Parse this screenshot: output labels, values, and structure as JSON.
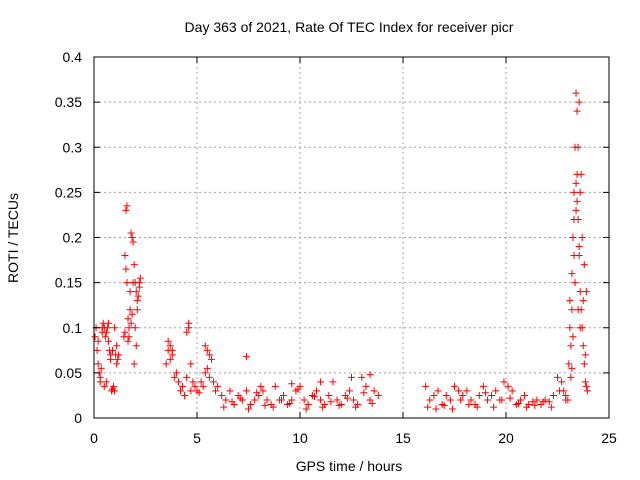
{
  "chart_data": {
    "type": "scatter",
    "title": "Day 363 of 2021, Rate Of TEC Index for receiver picr",
    "xlabel": "GPS time / hours",
    "ylabel": "ROTI / TECUs",
    "xlim": [
      0,
      25
    ],
    "ylim": [
      0,
      0.4
    ],
    "xticks": [
      0,
      5,
      10,
      15,
      20,
      25
    ],
    "xtick_labels": [
      "0",
      "5",
      "10",
      "15",
      "20",
      "25"
    ],
    "yticks": [
      0,
      0.05,
      0.1,
      0.15,
      0.2,
      0.25,
      0.3,
      0.35,
      0.4
    ],
    "ytick_labels": [
      "0",
      "0.05",
      "0.1",
      "0.15",
      "0.2",
      "0.25",
      "0.3",
      "0.35",
      "0.4"
    ],
    "grid": true,
    "marker": "+",
    "color": "#ff0000",
    "series": [
      {
        "name": "ROTI",
        "x": [
          0.05,
          0.1,
          0.15,
          0.2,
          0.25,
          0.3,
          0.35,
          0.4,
          0.45,
          0.5,
          0.55,
          0.6,
          0.65,
          0.7,
          0.75,
          0.8,
          0.85,
          0.9,
          0.95,
          1.0,
          1.05,
          1.1,
          1.15,
          1.2,
          0.2,
          0.3,
          0.4,
          0.5,
          0.6,
          0.7,
          0.8,
          0.9,
          1.0,
          1.1,
          1.45,
          1.5,
          1.55,
          1.6,
          1.65,
          1.7,
          1.75,
          1.8,
          1.85,
          1.9,
          1.95,
          2.0,
          2.05,
          2.1,
          2.15,
          2.2,
          2.25,
          1.5,
          1.6,
          1.7,
          1.8,
          1.9,
          2.0,
          2.1,
          2.2,
          1.55,
          1.65,
          1.75,
          1.85,
          1.95,
          2.05,
          3.5,
          3.6,
          3.7,
          3.8,
          3.9,
          4.0,
          4.1,
          4.2,
          4.3,
          4.4,
          4.5,
          4.6,
          4.7,
          4.8,
          4.9,
          5.0,
          5.1,
          5.2,
          5.3,
          5.4,
          5.5,
          5.6,
          5.7,
          5.8,
          5.9,
          6.0,
          4.5,
          4.6,
          4.7,
          5.4,
          5.5,
          5.6,
          3.6,
          3.7,
          3.8,
          6.2,
          6.4,
          6.6,
          6.8,
          7.0,
          7.2,
          7.4,
          7.6,
          7.8,
          8.0,
          8.2,
          8.4,
          8.6,
          8.8,
          9.0,
          9.2,
          9.4,
          9.6,
          9.8,
          10.0,
          10.2,
          10.4,
          10.6,
          10.8,
          11.0,
          11.2,
          11.4,
          11.6,
          11.8,
          12.0,
          12.2,
          12.4,
          12.6,
          12.8,
          13.0,
          13.2,
          13.4,
          13.6,
          13.8,
          6.3,
          6.7,
          7.1,
          7.5,
          7.9,
          8.3,
          8.7,
          9.1,
          9.5,
          9.9,
          10.3,
          10.7,
          11.1,
          11.5,
          11.9,
          12.3,
          12.7,
          13.1,
          13.5,
          7.4,
          8.1,
          9.6,
          11.0,
          12.5,
          13.4,
          16.1,
          16.3,
          16.5,
          16.7,
          16.9,
          17.1,
          17.3,
          17.5,
          17.7,
          17.9,
          18.1,
          18.3,
          18.5,
          18.7,
          18.9,
          19.1,
          19.3,
          19.5,
          19.7,
          19.9,
          20.1,
          20.3,
          20.5,
          20.7,
          20.9,
          21.1,
          21.3,
          21.5,
          21.7,
          21.9,
          22.1,
          22.3,
          22.5,
          22.7,
          22.9,
          16.2,
          16.6,
          17.0,
          17.4,
          17.8,
          18.2,
          18.6,
          19.0,
          19.4,
          19.8,
          20.2,
          20.6,
          21.0,
          21.4,
          21.8,
          22.2,
          22.6,
          22.8,
          22.9,
          23.0,
          23.05,
          23.1,
          23.15,
          23.2,
          23.25,
          23.3,
          23.35,
          23.4,
          23.45,
          23.5,
          23.55,
          23.6,
          23.65,
          23.7,
          23.75,
          23.8,
          23.85,
          23.9,
          23.95,
          23.1,
          23.2,
          23.3,
          23.4,
          23.5,
          23.6,
          23.7,
          23.8,
          23.9,
          23.15,
          23.25,
          23.35,
          23.45,
          23.55,
          23.65,
          23.75,
          23.85,
          23.3,
          23.4,
          23.5,
          23.6,
          23.2,
          23.45,
          23.55
        ],
        "y": [
          0.09,
          0.1,
          0.075,
          0.06,
          0.05,
          0.045,
          0.055,
          0.1,
          0.105,
          0.1,
          0.09,
          0.095,
          0.1,
          0.085,
          0.075,
          0.07,
          0.03,
          0.032,
          0.035,
          0.1,
          0.07,
          0.08,
          0.065,
          0.07,
          0.085,
          0.04,
          0.095,
          0.035,
          0.04,
          0.105,
          0.065,
          0.075,
          0.03,
          0.06,
          0.09,
          0.18,
          0.23,
          0.235,
          0.11,
          0.1,
          0.12,
          0.105,
          0.2,
          0.195,
          0.17,
          0.15,
          0.14,
          0.12,
          0.135,
          0.15,
          0.155,
          0.095,
          0.15,
          0.09,
          0.205,
          0.15,
          0.1,
          0.13,
          0.145,
          0.165,
          0.085,
          0.14,
          0.115,
          0.06,
          0.08,
          0.06,
          0.075,
          0.08,
          0.07,
          0.045,
          0.05,
          0.04,
          0.03,
          0.035,
          0.025,
          0.045,
          0.1,
          0.06,
          0.04,
          0.035,
          0.03,
          0.028,
          0.04,
          0.035,
          0.05,
          0.055,
          0.07,
          0.065,
          0.04,
          0.03,
          0.035,
          0.095,
          0.105,
          0.03,
          0.08,
          0.075,
          0.045,
          0.085,
          0.065,
          0.075,
          0.025,
          0.02,
          0.03,
          0.015,
          0.025,
          0.02,
          0.03,
          0.015,
          0.02,
          0.025,
          0.03,
          0.02,
          0.015,
          0.035,
          0.02,
          0.025,
          0.015,
          0.02,
          0.03,
          0.035,
          0.02,
          0.015,
          0.025,
          0.03,
          0.02,
          0.015,
          0.025,
          0.04,
          0.02,
          0.015,
          0.025,
          0.03,
          0.02,
          0.015,
          0.045,
          0.035,
          0.02,
          0.03,
          0.025,
          0.012,
          0.018,
          0.022,
          0.01,
          0.028,
          0.014,
          0.012,
          0.02,
          0.016,
          0.032,
          0.01,
          0.024,
          0.012,
          0.018,
          0.014,
          0.022,
          0.012,
          0.028,
          0.016,
          0.068,
          0.035,
          0.038,
          0.04,
          0.045,
          0.048,
          0.035,
          0.02,
          0.025,
          0.03,
          0.015,
          0.025,
          0.02,
          0.035,
          0.03,
          0.025,
          0.03,
          0.02,
          0.015,
          0.025,
          0.035,
          0.02,
          0.025,
          0.03,
          0.02,
          0.04,
          0.035,
          0.03,
          0.015,
          0.02,
          0.025,
          0.015,
          0.018,
          0.02,
          0.015,
          0.02,
          0.018,
          0.025,
          0.045,
          0.04,
          0.02,
          0.012,
          0.01,
          0.014,
          0.01,
          0.02,
          0.015,
          0.012,
          0.028,
          0.012,
          0.02,
          0.022,
          0.016,
          0.012,
          0.014,
          0.018,
          0.012,
          0.03,
          0.03,
          0.025,
          0.02,
          0.06,
          0.13,
          0.08,
          0.16,
          0.2,
          0.25,
          0.3,
          0.36,
          0.34,
          0.22,
          0.18,
          0.14,
          0.12,
          0.1,
          0.08,
          0.06,
          0.04,
          0.035,
          0.03,
          0.1,
          0.12,
          0.22,
          0.26,
          0.3,
          0.25,
          0.2,
          0.17,
          0.14,
          0.045,
          0.09,
          0.15,
          0.24,
          0.35,
          0.27,
          0.13,
          0.07,
          0.18,
          0.23,
          0.12,
          0.1,
          0.055,
          0.27,
          0.19
        ]
      }
    ]
  }
}
